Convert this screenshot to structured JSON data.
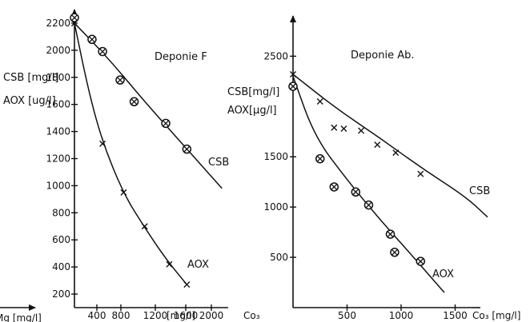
{
  "chart_data": [
    {
      "type": "scatter",
      "title": "Deponie F",
      "ylabel_lines": [
        "CSB [mg/l]",
        "AOX [ug/l]"
      ],
      "xlabel_left": "Mg [mg/l]",
      "xlabel_right": "Co₃",
      "x_unit_label": "[mg/l]",
      "x_ticks": [
        "400",
        "800",
        "1200",
        "1600",
        "2000"
      ],
      "y_ticks": [
        200,
        400,
        600,
        800,
        1000,
        1200,
        1400,
        1600,
        1800,
        2000,
        2200
      ],
      "xlim": [
        0,
        2200
      ],
      "ylim": [
        100,
        2300
      ],
      "series": [
        {
          "name": "CSB",
          "marker": "circle-x",
          "x": [
            0,
            250,
            400,
            650,
            850,
            1300,
            1600
          ],
          "y": [
            2240,
            2080,
            1990,
            1780,
            1620,
            1460,
            1270
          ],
          "fit": [
            [
              0,
              2200
            ],
            [
              500,
              1930
            ],
            [
              1000,
              1620
            ],
            [
              1500,
              1330
            ],
            [
              2100,
              980
            ]
          ]
        },
        {
          "name": "AOX",
          "marker": "x",
          "x": [
            0,
            400,
            700,
            1000,
            1350,
            1600
          ],
          "y": [
            2200,
            1310,
            950,
            700,
            420,
            270
          ],
          "fit": [
            [
              0,
              2200
            ],
            [
              200,
              1700
            ],
            [
              400,
              1320
            ],
            [
              700,
              940
            ],
            [
              1000,
              690
            ],
            [
              1300,
              460
            ],
            [
              1600,
              270
            ]
          ]
        }
      ]
    },
    {
      "type": "scatter",
      "title": "Deponie Ab.",
      "ylabel_lines": [
        "CSB[mg/l]",
        "AOX[µg/l]"
      ],
      "xlabel_right": "Co₃ [mg/l]",
      "x_ticks": [
        500,
        1000,
        1500
      ],
      "y_ticks": [
        500,
        1000,
        1500,
        2500
      ],
      "xlim": [
        0,
        2000
      ],
      "ylim": [
        0,
        2900
      ],
      "series": [
        {
          "name": "CSB",
          "marker": "x",
          "x": [
            0,
            250,
            380,
            470,
            630,
            780,
            950,
            1180
          ],
          "y": [
            2320,
            2050,
            1790,
            1780,
            1760,
            1620,
            1540,
            1330
          ],
          "fit": [
            [
              0,
              2320
            ],
            [
              400,
              1980
            ],
            [
              800,
              1690
            ],
            [
              1200,
              1380
            ],
            [
              1600,
              1100
            ],
            [
              1800,
              900
            ]
          ]
        },
        {
          "name": "AOX",
          "marker": "circle-x",
          "x": [
            0,
            250,
            380,
            580,
            700,
            900,
            940,
            1180
          ],
          "y": [
            2200,
            1480,
            1200,
            1150,
            1020,
            730,
            550,
            460
          ],
          "fit": [
            [
              0,
              2300
            ],
            [
              200,
              1700
            ],
            [
              500,
              1270
            ],
            [
              800,
              880
            ],
            [
              1100,
              520
            ],
            [
              1400,
              150
            ]
          ]
        }
      ]
    }
  ]
}
